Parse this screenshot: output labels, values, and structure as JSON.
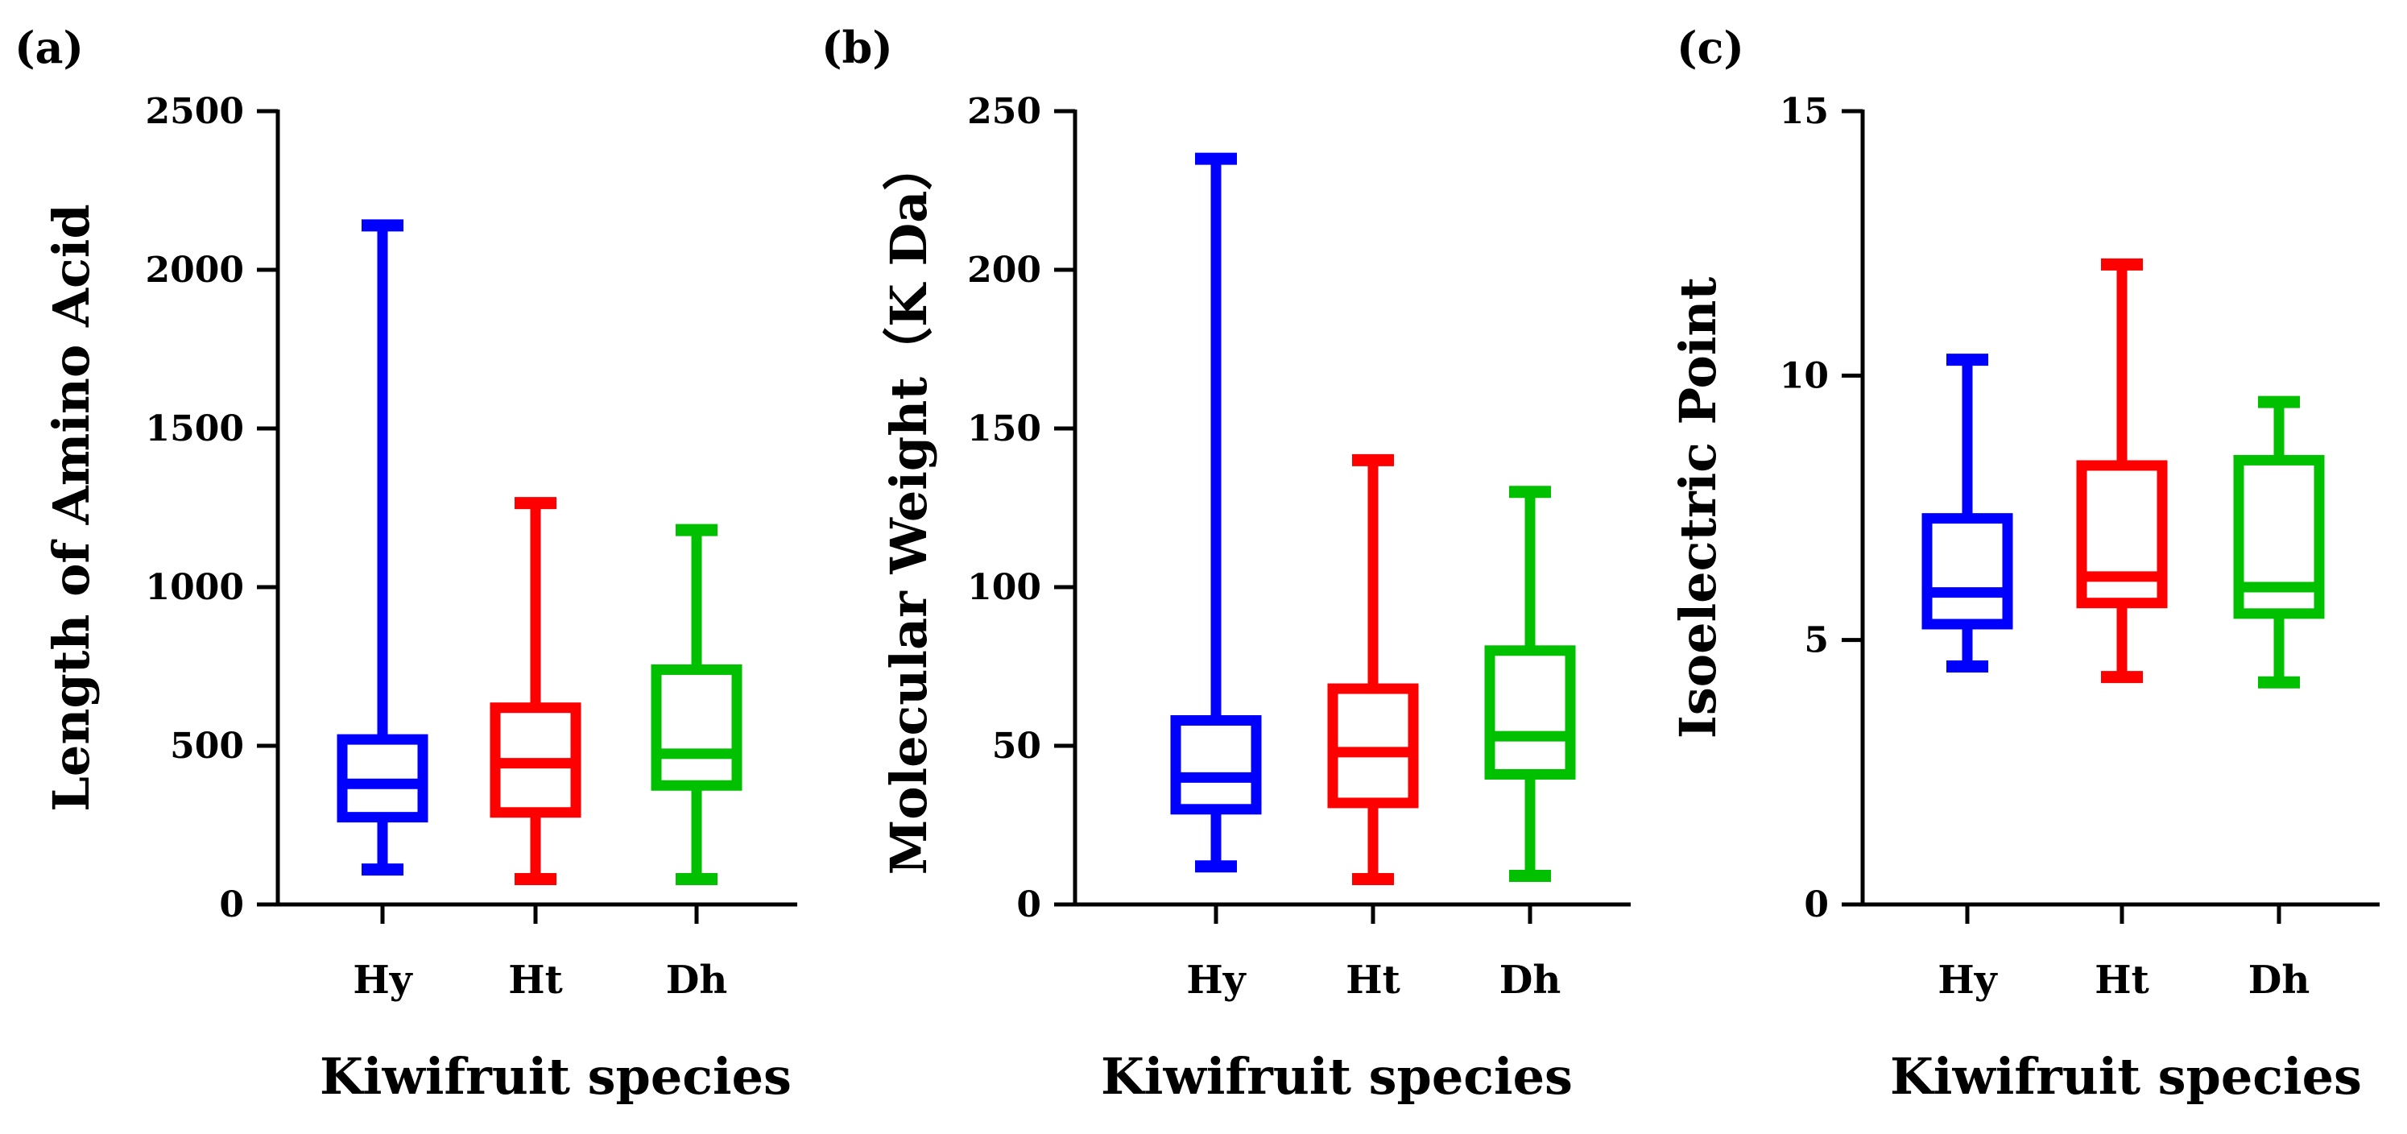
{
  "chart_data": [
    {
      "type": "box",
      "panel_label": "(a)",
      "title": "",
      "xlabel": "Kiwifruit species",
      "ylabel": "Length of Amino Acid",
      "ylim": [
        0,
        2500
      ],
      "yticks": [
        0,
        500,
        1000,
        1500,
        2000,
        2500
      ],
      "ytick_labels": [
        "0",
        "500",
        "1000",
        "1500",
        "2000",
        "2500"
      ],
      "categories": [
        "Hy",
        "Ht",
        "Dh"
      ],
      "colors": [
        "#0000ff",
        "#ff0000",
        "#00c000"
      ],
      "boxes": [
        {
          "category": "Hy",
          "min": 110,
          "q1": 275,
          "median": 380,
          "q3": 520,
          "max": 2140
        },
        {
          "category": "Ht",
          "min": 80,
          "q1": 290,
          "median": 445,
          "q3": 620,
          "max": 1265
        },
        {
          "category": "Dh",
          "min": 80,
          "q1": 375,
          "median": 475,
          "q3": 740,
          "max": 1180
        }
      ]
    },
    {
      "type": "box",
      "panel_label": "(b)",
      "title": "",
      "xlabel": "Kiwifruit species",
      "ylabel": "Molecular Weight（K Da）",
      "ylim": [
        0,
        250
      ],
      "yticks": [
        0,
        50,
        100,
        150,
        200,
        250
      ],
      "ytick_labels": [
        "0",
        "50",
        "100",
        "150",
        "200",
        "250"
      ],
      "categories": [
        "Hy",
        "Ht",
        "Dh"
      ],
      "colors": [
        "#0000ff",
        "#ff0000",
        "#00c000"
      ],
      "boxes": [
        {
          "category": "Hy",
          "min": 12,
          "q1": 30,
          "median": 40,
          "q3": 58,
          "max": 235
        },
        {
          "category": "Ht",
          "min": 8,
          "q1": 32,
          "median": 48,
          "q3": 68,
          "max": 140
        },
        {
          "category": "Dh",
          "min": 9,
          "q1": 41,
          "median": 53,
          "q3": 80,
          "max": 130
        }
      ]
    },
    {
      "type": "box",
      "panel_label": "(c)",
      "title": "",
      "xlabel": "Kiwifruit species",
      "ylabel": "Isoelectric Point",
      "ylim": [
        0,
        15
      ],
      "yticks": [
        0,
        5,
        10,
        15
      ],
      "ytick_labels": [
        "0",
        "5",
        "10",
        "15"
      ],
      "categories": [
        "Hy",
        "Ht",
        "Dh"
      ],
      "colors": [
        "#0000ff",
        "#ff0000",
        "#00c000"
      ],
      "boxes": [
        {
          "category": "Hy",
          "min": 4.5,
          "q1": 5.3,
          "median": 5.9,
          "q3": 7.3,
          "max": 10.3
        },
        {
          "category": "Ht",
          "min": 4.3,
          "q1": 5.7,
          "median": 6.2,
          "q3": 8.3,
          "max": 12.1
        },
        {
          "category": "Dh",
          "min": 4.2,
          "q1": 5.5,
          "median": 6.0,
          "q3": 8.4,
          "max": 9.5
        }
      ]
    }
  ]
}
